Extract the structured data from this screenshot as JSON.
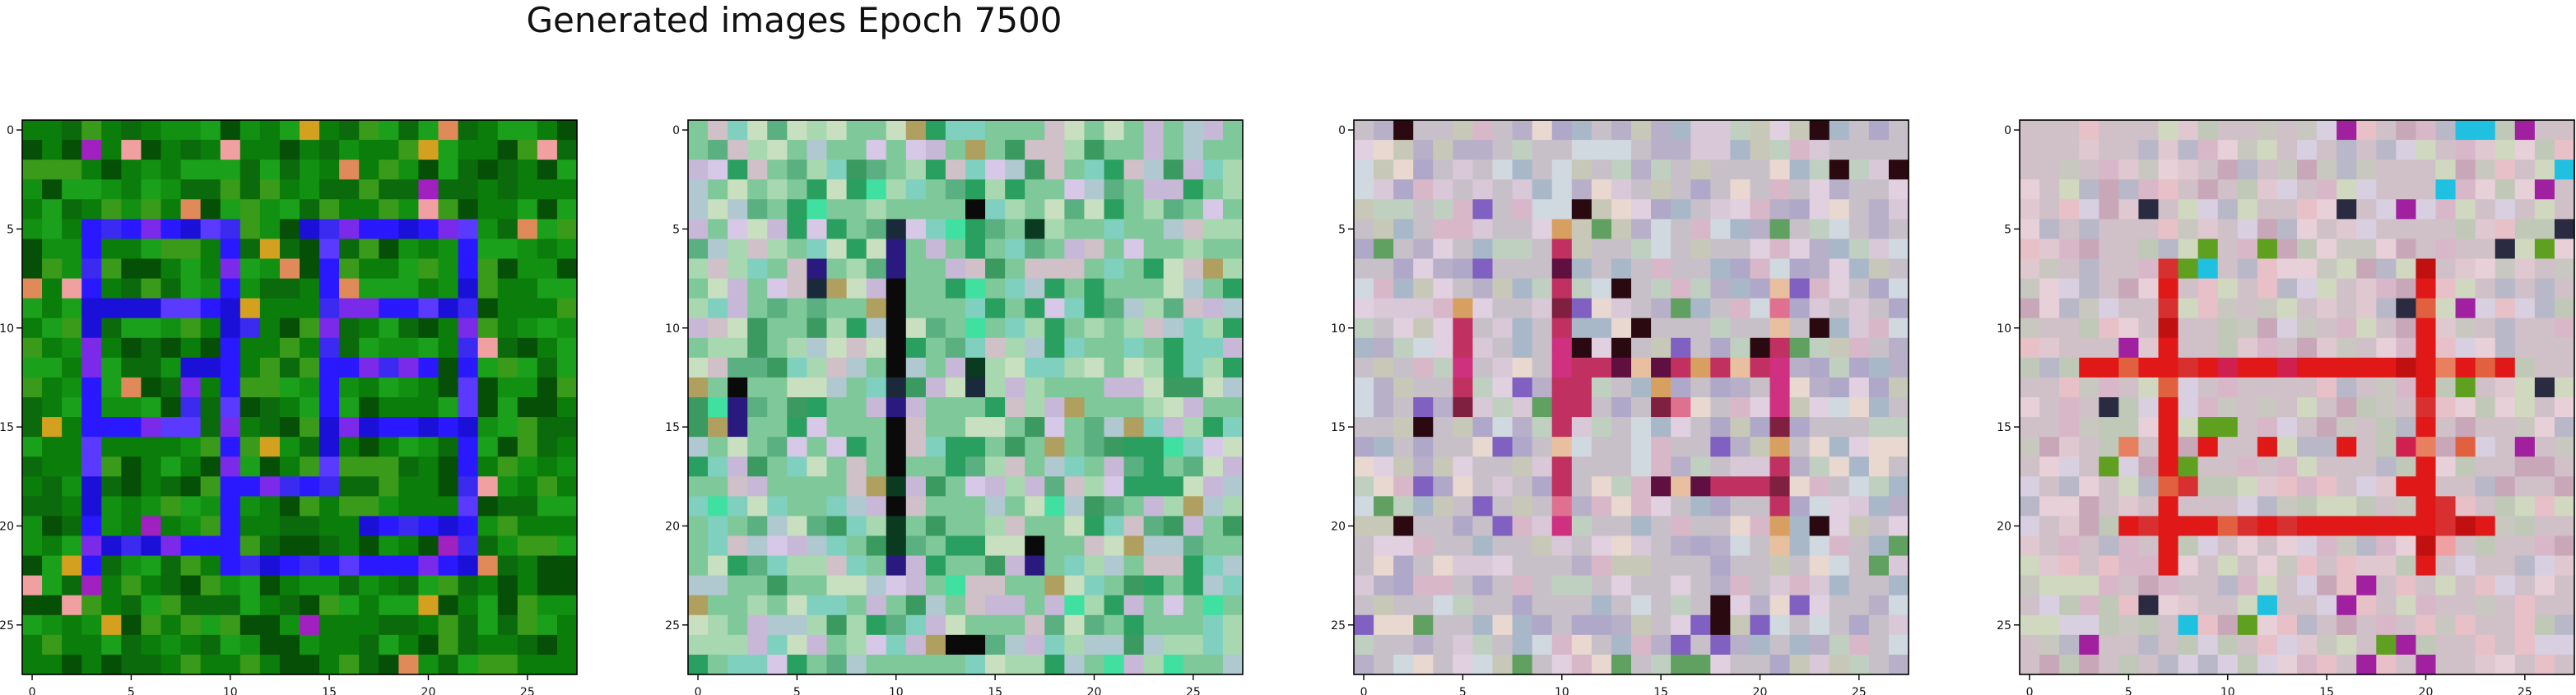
{
  "figure": {
    "title": "Generated images Epoch 7500"
  },
  "chart_data": [
    {
      "type": "heatmap",
      "title": "",
      "xlabel": "",
      "ylabel": "",
      "grid_size": 28,
      "xticks": [
        0,
        5,
        10,
        15,
        20,
        25
      ],
      "yticks": [
        0,
        5,
        10,
        15,
        20,
        25
      ],
      "xlim": [
        -0.5,
        27.5
      ],
      "ylim": [
        27.5,
        -0.5
      ],
      "description_palette": "green",
      "palette": {
        "base": "#0a7d0a",
        "alt": [
          "#0b6a0b",
          "#129012",
          "#064f06",
          "#1aa01a",
          "#3a9a1a"
        ],
        "pattern": "#2a18ff",
        "pattern_alt": [
          "#3b2af0",
          "#1a10d8",
          "#5a3aff",
          "#7a2ae8"
        ],
        "accent": [
          "#e08a5a",
          "#d4a020",
          "#f0a0a0",
          "#a020c0"
        ]
      },
      "pattern_cells": [
        [
          5,
          3
        ],
        [
          5,
          4
        ],
        [
          5,
          5
        ],
        [
          5,
          6
        ],
        [
          5,
          7
        ],
        [
          5,
          8
        ],
        [
          5,
          9
        ],
        [
          5,
          10
        ],
        [
          5,
          14
        ],
        [
          5,
          15
        ],
        [
          5,
          16
        ],
        [
          5,
          17
        ],
        [
          5,
          18
        ],
        [
          5,
          19
        ],
        [
          5,
          20
        ],
        [
          5,
          21
        ],
        [
          5,
          22
        ],
        [
          6,
          3
        ],
        [
          6,
          10
        ],
        [
          6,
          15
        ],
        [
          6,
          22
        ],
        [
          7,
          3
        ],
        [
          7,
          10
        ],
        [
          7,
          15
        ],
        [
          7,
          22
        ],
        [
          8,
          3
        ],
        [
          8,
          10
        ],
        [
          8,
          15
        ],
        [
          8,
          22
        ],
        [
          9,
          3
        ],
        [
          9,
          4
        ],
        [
          9,
          5
        ],
        [
          9,
          6
        ],
        [
          9,
          7
        ],
        [
          9,
          8
        ],
        [
          9,
          9
        ],
        [
          9,
          10
        ],
        [
          9,
          15
        ],
        [
          9,
          16
        ],
        [
          9,
          17
        ],
        [
          9,
          18
        ],
        [
          9,
          19
        ],
        [
          9,
          20
        ],
        [
          9,
          21
        ],
        [
          9,
          22
        ],
        [
          10,
          3
        ],
        [
          10,
          10
        ],
        [
          10,
          11
        ],
        [
          10,
          15
        ],
        [
          10,
          22
        ],
        [
          11,
          3
        ],
        [
          11,
          10
        ],
        [
          11,
          15
        ],
        [
          11,
          22
        ],
        [
          12,
          3
        ],
        [
          12,
          8
        ],
        [
          12,
          9
        ],
        [
          12,
          10
        ],
        [
          12,
          15
        ],
        [
          12,
          16
        ],
        [
          12,
          17
        ],
        [
          12,
          18
        ],
        [
          12,
          19
        ],
        [
          12,
          20
        ],
        [
          12,
          22
        ],
        [
          13,
          3
        ],
        [
          13,
          8
        ],
        [
          13,
          10
        ],
        [
          13,
          15
        ],
        [
          13,
          22
        ],
        [
          14,
          3
        ],
        [
          14,
          8
        ],
        [
          14,
          10
        ],
        [
          14,
          15
        ],
        [
          14,
          22
        ],
        [
          15,
          3
        ],
        [
          15,
          4
        ],
        [
          15,
          5
        ],
        [
          15,
          6
        ],
        [
          15,
          7
        ],
        [
          15,
          8
        ],
        [
          15,
          10
        ],
        [
          15,
          15
        ],
        [
          15,
          16
        ],
        [
          15,
          17
        ],
        [
          15,
          18
        ],
        [
          15,
          19
        ],
        [
          15,
          20
        ],
        [
          15,
          21
        ],
        [
          15,
          22
        ],
        [
          16,
          3
        ],
        [
          16,
          10
        ],
        [
          16,
          15
        ],
        [
          16,
          22
        ],
        [
          17,
          3
        ],
        [
          17,
          10
        ],
        [
          17,
          15
        ],
        [
          17,
          22
        ],
        [
          18,
          3
        ],
        [
          18,
          10
        ],
        [
          18,
          11
        ],
        [
          18,
          12
        ],
        [
          18,
          13
        ],
        [
          18,
          14
        ],
        [
          18,
          15
        ],
        [
          18,
          22
        ],
        [
          19,
          3
        ],
        [
          19,
          10
        ],
        [
          19,
          22
        ],
        [
          20,
          3
        ],
        [
          20,
          10
        ],
        [
          20,
          17
        ],
        [
          20,
          18
        ],
        [
          20,
          19
        ],
        [
          20,
          20
        ],
        [
          20,
          21
        ],
        [
          20,
          22
        ],
        [
          21,
          3
        ],
        [
          21,
          4
        ],
        [
          21,
          5
        ],
        [
          21,
          6
        ],
        [
          21,
          7
        ],
        [
          21,
          8
        ],
        [
          21,
          9
        ],
        [
          21,
          10
        ],
        [
          21,
          22
        ],
        [
          22,
          3
        ],
        [
          22,
          10
        ],
        [
          22,
          11
        ],
        [
          22,
          12
        ],
        [
          22,
          13
        ],
        [
          22,
          14
        ],
        [
          22,
          15
        ],
        [
          22,
          16
        ],
        [
          22,
          17
        ],
        [
          22,
          18
        ],
        [
          22,
          19
        ],
        [
          22,
          20
        ],
        [
          22,
          21
        ],
        [
          22,
          22
        ]
      ],
      "seed": 11
    },
    {
      "type": "heatmap",
      "title": "",
      "xlabel": "",
      "ylabel": "",
      "grid_size": 28,
      "xticks": [
        0,
        5,
        10,
        15,
        20,
        25
      ],
      "yticks": [
        0,
        5,
        10,
        15,
        20,
        25
      ],
      "xlim": [
        -0.5,
        27.5
      ],
      "ylim": [
        27.5,
        -0.5
      ],
      "palette": {
        "base": "#7fc89a",
        "alt": [
          "#a8d8b0",
          "#5ab080",
          "#c8e0c0",
          "#3a9a60",
          "#b0c8d0",
          "#d0c0c8",
          "#80d0c0",
          "#2aa060",
          "#c8b8d8"
        ],
        "pattern": "#0a0a0a",
        "pattern_alt": [
          "#1a2a3a",
          "#2a1a80",
          "#0a3a20"
        ],
        "accent": [
          "#40e0a0",
          "#b0a060",
          "#d8c8e8"
        ]
      },
      "pattern_cells": [
        [
          5,
          10
        ],
        [
          6,
          10
        ],
        [
          7,
          10
        ],
        [
          8,
          10
        ],
        [
          9,
          10
        ],
        [
          10,
          10
        ],
        [
          11,
          10
        ],
        [
          12,
          10
        ],
        [
          13,
          10
        ],
        [
          14,
          10
        ],
        [
          15,
          10
        ],
        [
          16,
          10
        ],
        [
          17,
          10
        ],
        [
          18,
          10
        ],
        [
          19,
          10
        ],
        [
          20,
          10
        ],
        [
          21,
          10
        ],
        [
          22,
          10
        ],
        [
          13,
          2
        ],
        [
          14,
          2
        ],
        [
          15,
          2
        ],
        [
          12,
          14
        ],
        [
          13,
          14
        ],
        [
          7,
          6
        ],
        [
          8,
          6
        ],
        [
          22,
          17
        ],
        [
          21,
          17
        ],
        [
          26,
          13
        ],
        [
          26,
          14
        ],
        [
          4,
          14
        ],
        [
          5,
          17
        ]
      ],
      "seed": 23
    },
    {
      "type": "heatmap",
      "title": "",
      "xlabel": "",
      "ylabel": "",
      "grid_size": 28,
      "xticks": [
        0,
        5,
        10,
        15,
        20,
        25
      ],
      "yticks": [
        0,
        5,
        10,
        15,
        20,
        25
      ],
      "xlim": [
        -0.5,
        27.5
      ],
      "ylim": [
        27.5,
        -0.5
      ],
      "palette": {
        "base": "#c8c0c8",
        "alt": [
          "#d8c8d8",
          "#b8b0c8",
          "#e0d0e0",
          "#c8c8b8",
          "#a8b8c8",
          "#d8b8c8",
          "#c0d0c0",
          "#e8d8d0",
          "#b0a8c8",
          "#d0d8e0"
        ],
        "pattern": "#c03060",
        "pattern_alt": [
          "#d8a060",
          "#e07090",
          "#802040",
          "#e8c0a0",
          "#d03080",
          "#601040"
        ],
        "accent": [
          "#2a0a10",
          "#60a060",
          "#8060c0"
        ]
      },
      "pattern_cells": [
        [
          5,
          10
        ],
        [
          6,
          10
        ],
        [
          7,
          10
        ],
        [
          8,
          10
        ],
        [
          9,
          10
        ],
        [
          10,
          10
        ],
        [
          11,
          10
        ],
        [
          12,
          10
        ],
        [
          13,
          10
        ],
        [
          14,
          10
        ],
        [
          15,
          10
        ],
        [
          16,
          10
        ],
        [
          17,
          10
        ],
        [
          18,
          10
        ],
        [
          19,
          10
        ],
        [
          20,
          10
        ],
        [
          9,
          5
        ],
        [
          10,
          5
        ],
        [
          11,
          5
        ],
        [
          12,
          5
        ],
        [
          13,
          5
        ],
        [
          14,
          5
        ],
        [
          12,
          11
        ],
        [
          12,
          12
        ],
        [
          12,
          13
        ],
        [
          12,
          14
        ],
        [
          12,
          15
        ],
        [
          12,
          16
        ],
        [
          12,
          17
        ],
        [
          12,
          18
        ],
        [
          12,
          19
        ],
        [
          12,
          20
        ],
        [
          12,
          21
        ],
        [
          13,
          11
        ],
        [
          13,
          15
        ],
        [
          13,
          21
        ],
        [
          14,
          11
        ],
        [
          14,
          15
        ],
        [
          14,
          16
        ],
        [
          14,
          21
        ],
        [
          18,
          15
        ],
        [
          18,
          16
        ],
        [
          18,
          17
        ],
        [
          18,
          18
        ],
        [
          18,
          19
        ],
        [
          18,
          20
        ],
        [
          18,
          21
        ],
        [
          19,
          21
        ],
        [
          20,
          21
        ],
        [
          21,
          21
        ],
        [
          17,
          21
        ],
        [
          16,
          21
        ],
        [
          15,
          21
        ],
        [
          8,
          21
        ],
        [
          9,
          21
        ],
        [
          10,
          21
        ],
        [
          11,
          21
        ]
      ],
      "seed": 37
    },
    {
      "type": "heatmap",
      "title": "",
      "xlabel": "",
      "ylabel": "",
      "grid_size": 28,
      "xticks": [
        0,
        5,
        10,
        15,
        20,
        25
      ],
      "yticks": [
        0,
        5,
        10,
        15,
        20,
        25
      ],
      "xlim": [
        -0.5,
        27.5
      ],
      "ylim": [
        27.5,
        -0.5
      ],
      "palette": {
        "base": "#d0c0c8",
        "alt": [
          "#e0c8d0",
          "#c8c8c0",
          "#d8b8c8",
          "#c0c8b8",
          "#e8d0d8",
          "#b8b8c8",
          "#d0d8c0",
          "#e8c0c8",
          "#c8a8b8",
          "#d8d0e0"
        ],
        "pattern": "#e01818",
        "pattern_alt": [
          "#d83030",
          "#f04040",
          "#c01010",
          "#e06040",
          "#f0a0a0",
          "#d02050",
          "#e88060"
        ],
        "accent": [
          "#a020a0",
          "#2a2a40",
          "#20c0e0",
          "#60a020"
        ]
      },
      "pattern_cells": [
        [
          7,
          7
        ],
        [
          8,
          7
        ],
        [
          9,
          7
        ],
        [
          10,
          7
        ],
        [
          11,
          7
        ],
        [
          12,
          7
        ],
        [
          13,
          7
        ],
        [
          14,
          7
        ],
        [
          15,
          7
        ],
        [
          16,
          7
        ],
        [
          17,
          7
        ],
        [
          18,
          7
        ],
        [
          19,
          7
        ],
        [
          20,
          7
        ],
        [
          21,
          7
        ],
        [
          22,
          7
        ],
        [
          7,
          20
        ],
        [
          8,
          20
        ],
        [
          9,
          20
        ],
        [
          10,
          20
        ],
        [
          11,
          20
        ],
        [
          12,
          20
        ],
        [
          13,
          20
        ],
        [
          14,
          20
        ],
        [
          15,
          20
        ],
        [
          16,
          20
        ],
        [
          17,
          20
        ],
        [
          18,
          20
        ],
        [
          19,
          20
        ],
        [
          20,
          20
        ],
        [
          21,
          20
        ],
        [
          22,
          20
        ],
        [
          12,
          3
        ],
        [
          12,
          4
        ],
        [
          12,
          5
        ],
        [
          12,
          6
        ],
        [
          12,
          8
        ],
        [
          12,
          9
        ],
        [
          12,
          10
        ],
        [
          12,
          11
        ],
        [
          12,
          12
        ],
        [
          12,
          13
        ],
        [
          12,
          14
        ],
        [
          12,
          15
        ],
        [
          12,
          16
        ],
        [
          12,
          17
        ],
        [
          12,
          18
        ],
        [
          12,
          19
        ],
        [
          12,
          21
        ],
        [
          12,
          22
        ],
        [
          12,
          23
        ],
        [
          12,
          24
        ],
        [
          20,
          5
        ],
        [
          20,
          6
        ],
        [
          20,
          8
        ],
        [
          20,
          9
        ],
        [
          20,
          10
        ],
        [
          20,
          11
        ],
        [
          20,
          12
        ],
        [
          20,
          13
        ],
        [
          20,
          14
        ],
        [
          20,
          15
        ],
        [
          20,
          16
        ],
        [
          20,
          17
        ],
        [
          20,
          18
        ],
        [
          20,
          19
        ],
        [
          20,
          21
        ],
        [
          20,
          22
        ],
        [
          20,
          23
        ],
        [
          16,
          5
        ],
        [
          16,
          9
        ],
        [
          16,
          12
        ],
        [
          16,
          16
        ],
        [
          16,
          19
        ],
        [
          16,
          22
        ],
        [
          19,
          21
        ],
        [
          21,
          21
        ],
        [
          18,
          19
        ],
        [
          18,
          8
        ]
      ],
      "seed": 53
    }
  ]
}
